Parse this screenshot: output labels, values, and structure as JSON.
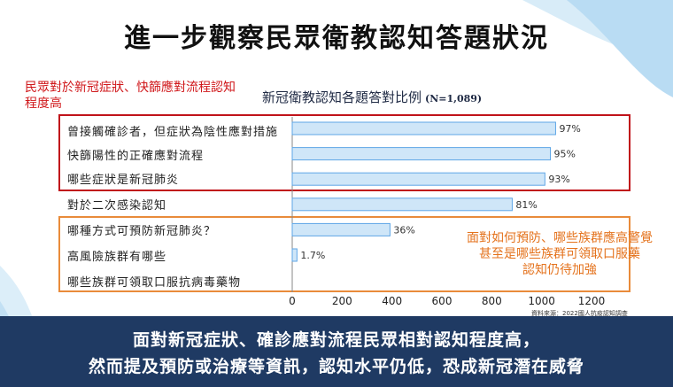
{
  "title": "進一步觀察民眾衛教認知答題狀況",
  "red_note": "民眾對於新冠症狀、快篩應對流程認知程度高",
  "chart_title": "新冠衛教認知各題答對比例",
  "chart_n": "(N=1,089)",
  "orange_note_lines": [
    "面對如何預防、哪些族群應高警覺",
    "甚至是哪些族群可領取口服藥",
    "認知仍待加強"
  ],
  "source": "資料來源：2022國人抗疫認知調查",
  "banner_lines": [
    "面對新冠症狀、確診應對流程民眾相對認知程度高，",
    "然而提及預防或治療等資訊，認知水平仍低，恐成新冠潛在威脅"
  ],
  "colors": {
    "bar_fill": "#cfe6f8",
    "bar_stroke": "#5ea6e6",
    "red_box": "#c0121a",
    "orange_box": "#e98b3a",
    "banner": "#1f3a63"
  },
  "chart_data": {
    "type": "bar",
    "orientation": "horizontal",
    "title": "新冠衛教認知各題答對比例",
    "categories": [
      "曾接觸確診者，但症狀為陰性應對措施",
      "快篩陽性的正確應對流程",
      "哪些症狀是新冠肺炎",
      "對於二次感染認知",
      "哪種方式可預防新冠肺炎？",
      "高風險族群有哪些",
      "哪些族群可領取口服抗病毒藥物"
    ],
    "values": [
      1056,
      1035,
      1013,
      882,
      392,
      19,
      0
    ],
    "data_labels": [
      "97%",
      "95%",
      "93%",
      "81%",
      "36%",
      "1.7%",
      ""
    ],
    "xlim": [
      0,
      1200
    ],
    "xticks": [
      0,
      200,
      400,
      600,
      800,
      1000,
      1200
    ],
    "grid": false
  }
}
